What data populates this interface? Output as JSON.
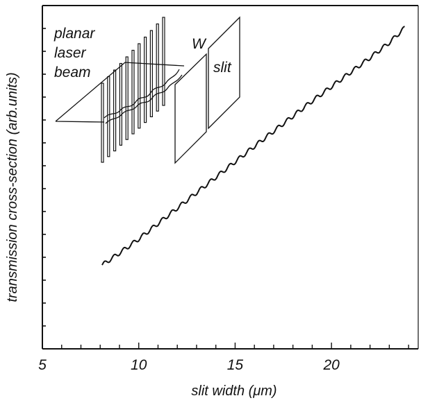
{
  "chart_data": {
    "type": "line",
    "xlabel": "slit width (μm)",
    "ylabel": "transmission cross-section (arb.units)",
    "xlim": [
      5,
      24.5
    ],
    "ylim": [
      0,
      1
    ],
    "x_ticks": [
      5,
      10,
      15,
      20
    ],
    "x_tick_labels": [
      "5",
      "10",
      "15",
      "20"
    ],
    "y_tick_count": 14,
    "grid": false,
    "series": [
      {
        "x": [
          8.1,
          9,
          10,
          11,
          12,
          13,
          14,
          15,
          16,
          17,
          18,
          19,
          20,
          21,
          22,
          23,
          23.8
        ],
        "y": [
          0.244,
          0.279,
          0.32,
          0.365,
          0.41,
          0.455,
          0.5,
          0.545,
          0.59,
          0.634,
          0.678,
          0.722,
          0.764,
          0.806,
          0.848,
          0.892,
          0.935
        ],
        "ripple_period": 0.5,
        "ripple_amplitude": 0.006
      }
    ],
    "inset": {
      "beam_label_lines": [
        "planar",
        "laser",
        "beam"
      ],
      "width_label": "W",
      "slit_label": "slit"
    }
  }
}
